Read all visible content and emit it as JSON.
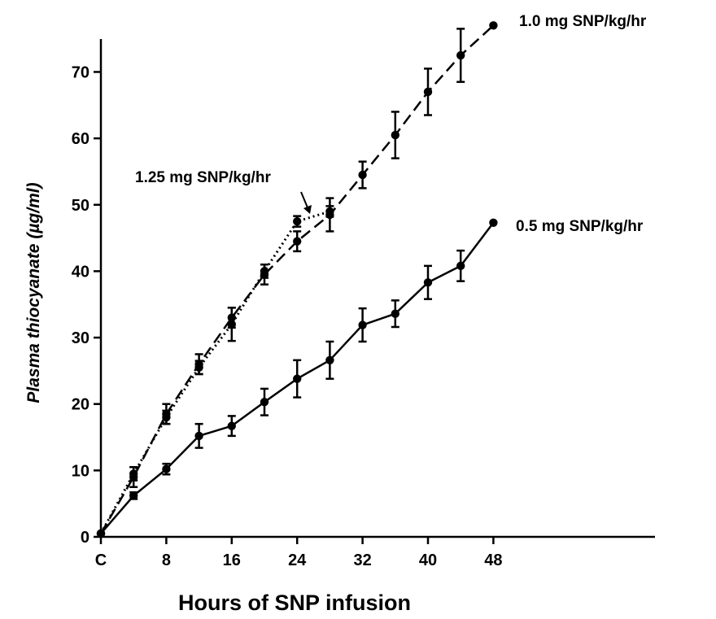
{
  "chart_data": {
    "type": "line",
    "title": "",
    "xlabel": "Hours of SNP infusion",
    "ylabel": "Plasma thiocyanate (µg/ml)",
    "xlim": [
      0,
      48
    ],
    "ylim": [
      0,
      75
    ],
    "x_ticks": [
      {
        "value": 0,
        "label": "C"
      },
      {
        "value": 8,
        "label": "8"
      },
      {
        "value": 16,
        "label": "16"
      },
      {
        "value": 24,
        "label": "24"
      },
      {
        "value": 32,
        "label": "32"
      },
      {
        "value": 40,
        "label": "40"
      },
      {
        "value": 48,
        "label": "48"
      }
    ],
    "y_ticks": [
      {
        "value": 0,
        "label": "0"
      },
      {
        "value": 10,
        "label": "10"
      },
      {
        "value": 20,
        "label": "20"
      },
      {
        "value": 30,
        "label": "30"
      },
      {
        "value": 40,
        "label": "40"
      },
      {
        "value": 50,
        "label": "50"
      },
      {
        "value": 60,
        "label": "60"
      },
      {
        "value": 70,
        "label": "70"
      }
    ],
    "grid": false,
    "legend": "labels placed next to the series",
    "series": [
      {
        "name": "1.0 mg SNP/kg/hr",
        "line_style": "dashed",
        "marker": "circle",
        "x": [
          0,
          4,
          8,
          12,
          16,
          20,
          24,
          28,
          32,
          36,
          40,
          44,
          48
        ],
        "y": [
          0.5,
          9,
          18.5,
          26,
          33,
          39.5,
          44.5,
          48.5,
          54.5,
          60.5,
          67,
          72.5,
          77
        ],
        "err": [
          0,
          1.5,
          1.5,
          1.5,
          1.5,
          1.5,
          1.5,
          2.5,
          2,
          3.5,
          3.5,
          4,
          0
        ]
      },
      {
        "name": "1.25 mg SNP/kg/hr",
        "line_style": "dotted",
        "marker": "circle",
        "x": [
          0,
          4,
          8,
          12,
          16,
          20,
          24,
          28
        ],
        "y": [
          0.5,
          9.5,
          18,
          25.5,
          32,
          40,
          47.5,
          49
        ],
        "err": [
          0,
          1,
          1,
          1,
          2.5,
          1,
          0.8,
          0.8
        ]
      },
      {
        "name": "0.5 mg SNP/kg/hr",
        "line_style": "solid",
        "marker": "circle",
        "x": [
          0,
          4,
          8,
          12,
          16,
          20,
          24,
          28,
          32,
          36,
          40,
          44,
          48
        ],
        "y": [
          0.5,
          6.2,
          10.2,
          15.2,
          16.7,
          20.3,
          23.8,
          26.6,
          31.9,
          33.6,
          38.3,
          40.8,
          47.3
        ],
        "err": [
          0,
          0.5,
          0.8,
          1.8,
          1.5,
          2,
          2.8,
          2.8,
          2.5,
          2,
          2.5,
          2.3,
          0
        ]
      }
    ]
  }
}
